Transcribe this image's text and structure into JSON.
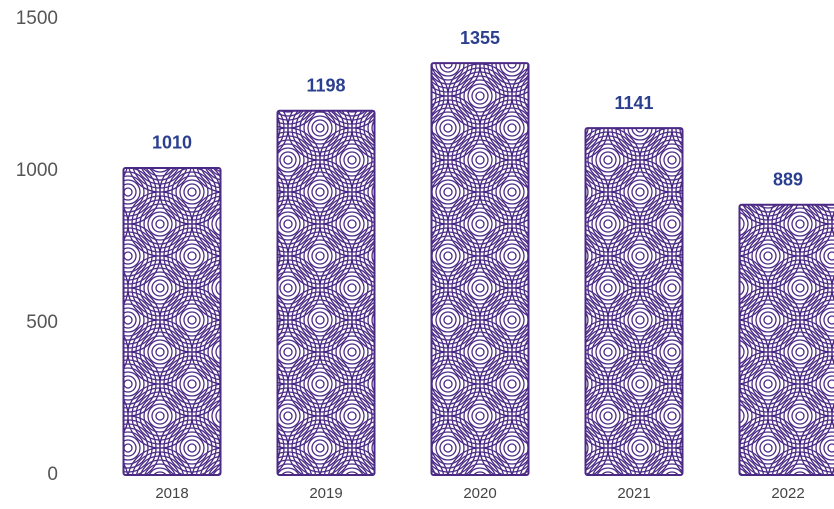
{
  "chart_data": {
    "type": "bar",
    "categories": [
      "2018",
      "2019",
      "2020",
      "2021",
      "2022"
    ],
    "values": [
      1010,
      1198,
      1355,
      1141,
      889
    ],
    "color": "#4b2a86",
    "label_color": "#2b3f8f",
    "ylim": [
      0,
      1500
    ],
    "yticks": [
      0,
      500,
      1000,
      1500
    ]
  }
}
